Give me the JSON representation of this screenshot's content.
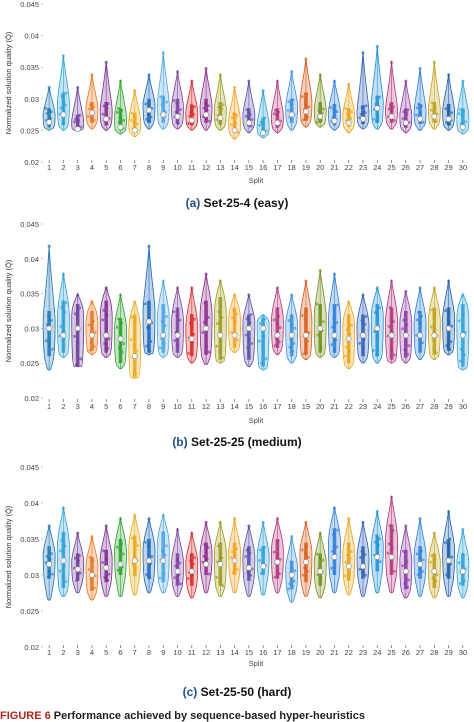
{
  "palette": [
    "#1f77b4",
    "#2a9fd6",
    "#6a3d9a",
    "#e8731a",
    "#7b2d8e",
    "#2ca02c",
    "#e6a817",
    "#1a66b8",
    "#4aa3df",
    "#7b3f9e",
    "#d62728",
    "#8a2a8a",
    "#9a9a1a",
    "#f0a020",
    "#5b4ea3",
    "#2a9fd6",
    "#b0347a",
    "#3a8fd6",
    "#d65a1a",
    "#6f8f1a",
    "#2b7bd6",
    "#e8a317",
    "#2a5fb8",
    "#1f8fd6",
    "#b0347a",
    "#8a3a9e",
    "#2a7fd6",
    "#c0a018",
    "#1a5fa8",
    "#2ea0d6"
  ],
  "chart_data": [
    {
      "type": "violin",
      "caption_label": "(a)",
      "caption_text": "Set-25-4 (easy)",
      "xlabel": "Split",
      "ylabel": "Normalized solution quality (Q̄)",
      "ylim": [
        0.02,
        0.045
      ],
      "yticks": [
        "0.02",
        "0.025",
        "0.03",
        "0.035",
        "0.04",
        "0.045"
      ],
      "categories": [
        "1",
        "2",
        "3",
        "4",
        "5",
        "6",
        "7",
        "8",
        "9",
        "10",
        "11",
        "12",
        "13",
        "14",
        "15",
        "16",
        "17",
        "18",
        "19",
        "20",
        "21",
        "22",
        "23",
        "24",
        "25",
        "26",
        "27",
        "28",
        "29",
        "30"
      ],
      "series": [
        {
          "values": [
            0.0263,
            0.0275,
            0.0252,
            0.0278,
            0.0268,
            0.0255,
            0.025,
            0.0282,
            0.0275,
            0.0272,
            0.0266,
            0.0275,
            0.027,
            0.025,
            0.0262,
            0.0246,
            0.0262,
            0.0275,
            0.028,
            0.0272,
            0.0265,
            0.0262,
            0.0268,
            0.0285,
            0.0272,
            0.0262,
            0.0268,
            0.0272,
            0.0268,
            0.0255
          ]
        },
        {
          "values": [
            0.0255,
            0.0258,
            0.0252,
            0.0262,
            0.0258,
            0.025,
            0.0247,
            0.0262,
            0.0262,
            0.026,
            0.0258,
            0.0262,
            0.0258,
            0.0246,
            0.0256,
            0.0244,
            0.0254,
            0.0262,
            0.0265,
            0.0262,
            0.0258,
            0.0256,
            0.026,
            0.0262,
            0.0262,
            0.0254,
            0.026,
            0.0262,
            0.0258,
            0.025
          ]
        },
        {
          "values": [
            0.0285,
            0.031,
            0.0275,
            0.0295,
            0.0295,
            0.0285,
            0.0278,
            0.03,
            0.0305,
            0.03,
            0.029,
            0.03,
            0.0295,
            0.0278,
            0.0285,
            0.027,
            0.0285,
            0.03,
            0.031,
            0.0295,
            0.0292,
            0.0285,
            0.029,
            0.0305,
            0.0295,
            0.0285,
            0.0292,
            0.0295,
            0.0292,
            0.0285
          ]
        },
        {
          "values": [
            0.025,
            0.025,
            0.0248,
            0.0252,
            0.025,
            0.0244,
            0.024,
            0.0252,
            0.0252,
            0.0252,
            0.025,
            0.025,
            0.025,
            0.0236,
            0.0246,
            0.0238,
            0.0246,
            0.025,
            0.0255,
            0.0255,
            0.025,
            0.0246,
            0.0252,
            0.0252,
            0.0252,
            0.0246,
            0.025,
            0.0252,
            0.025,
            0.0244
          ]
        },
        {
          "values": [
            0.032,
            0.037,
            0.032,
            0.034,
            0.036,
            0.033,
            0.0315,
            0.034,
            0.0375,
            0.0345,
            0.033,
            0.035,
            0.034,
            0.032,
            0.033,
            0.0315,
            0.033,
            0.0345,
            0.0365,
            0.034,
            0.033,
            0.0325,
            0.0375,
            0.0385,
            0.036,
            0.033,
            0.035,
            0.036,
            0.034,
            0.033
          ]
        }
      ]
    },
    {
      "type": "violin",
      "caption_label": "(b)",
      "caption_text": "Set-25-25 (medium)",
      "xlabel": "Split",
      "ylabel": "Normalized solution quality (Q̄)",
      "ylim": [
        0.02,
        0.045
      ],
      "yticks": [
        "0.02",
        "0.025",
        "0.03",
        "0.035",
        "0.04",
        "0.045"
      ],
      "categories": [
        "1",
        "2",
        "3",
        "4",
        "5",
        "6",
        "7",
        "8",
        "9",
        "10",
        "11",
        "12",
        "13",
        "14",
        "15",
        "16",
        "17",
        "18",
        "19",
        "20",
        "21",
        "22",
        "23",
        "24",
        "25",
        "26",
        "27",
        "28",
        "29",
        "30"
      ],
      "series": [
        {
          "values": [
            0.03,
            0.029,
            0.03,
            0.029,
            0.029,
            0.0285,
            0.026,
            0.031,
            0.029,
            0.029,
            0.0285,
            0.03,
            0.029,
            0.029,
            0.03,
            0.03,
            0.029,
            0.029,
            0.029,
            0.03,
            0.029,
            0.0285,
            0.029,
            0.03,
            0.029,
            0.029,
            0.029,
            0.029,
            0.03,
            0.029
          ]
        },
        {
          "values": [
            0.026,
            0.0265,
            0.0245,
            0.0268,
            0.0265,
            0.025,
            0.023,
            0.0265,
            0.0265,
            0.0265,
            0.026,
            0.0262,
            0.0255,
            0.0272,
            0.0255,
            0.0245,
            0.0272,
            0.026,
            0.0262,
            0.0265,
            0.0265,
            0.025,
            0.026,
            0.026,
            0.0255,
            0.0258,
            0.0265,
            0.0262,
            0.0268,
            0.0245
          ]
        },
        {
          "values": [
            0.0325,
            0.034,
            0.0335,
            0.0325,
            0.034,
            0.0315,
            0.032,
            0.034,
            0.0335,
            0.033,
            0.032,
            0.034,
            0.0345,
            0.033,
            0.032,
            0.0315,
            0.033,
            0.032,
            0.033,
            0.0335,
            0.0335,
            0.032,
            0.032,
            0.0335,
            0.033,
            0.0325,
            0.0325,
            0.033,
            0.033,
            0.0335
          ]
        },
        {
          "values": [
            0.024,
            0.0258,
            0.0245,
            0.0262,
            0.0258,
            0.0242,
            0.0228,
            0.0262,
            0.0258,
            0.0258,
            0.025,
            0.0248,
            0.025,
            0.0265,
            0.0245,
            0.024,
            0.0262,
            0.025,
            0.0255,
            0.0258,
            0.0258,
            0.0242,
            0.025,
            0.025,
            0.025,
            0.025,
            0.0255,
            0.0255,
            0.0262,
            0.024
          ]
        },
        {
          "values": [
            0.042,
            0.038,
            0.035,
            0.034,
            0.036,
            0.035,
            0.034,
            0.042,
            0.037,
            0.036,
            0.036,
            0.038,
            0.037,
            0.035,
            0.035,
            0.032,
            0.036,
            0.035,
            0.037,
            0.0385,
            0.038,
            0.034,
            0.035,
            0.036,
            0.037,
            0.0355,
            0.036,
            0.036,
            0.037,
            0.035
          ]
        }
      ]
    },
    {
      "type": "violin",
      "caption_label": "(c)",
      "caption_text": "Set-25-50 (hard)",
      "xlabel": "Split",
      "ylabel": "Normalized solution quality (Q̄)",
      "ylim": [
        0.02,
        0.045
      ],
      "yticks": [
        "0.02",
        "0.025",
        "0.03",
        "0.035",
        "0.04",
        "0.045"
      ],
      "categories": [
        "1",
        "2",
        "3",
        "4",
        "5",
        "6",
        "7",
        "8",
        "9",
        "10",
        "11",
        "12",
        "13",
        "14",
        "15",
        "16",
        "17",
        "18",
        "19",
        "20",
        "21",
        "22",
        "23",
        "24",
        "25",
        "26",
        "27",
        "28",
        "29",
        "30"
      ],
      "series": [
        {
          "values": [
            0.0315,
            0.032,
            0.0308,
            0.03,
            0.031,
            0.0315,
            0.032,
            0.032,
            0.032,
            0.0305,
            0.0305,
            0.0315,
            0.0315,
            0.032,
            0.031,
            0.0312,
            0.0318,
            0.03,
            0.0318,
            0.0305,
            0.0325,
            0.0312,
            0.0312,
            0.0325,
            0.0325,
            0.0305,
            0.0315,
            0.0305,
            0.032,
            0.0305
          ]
        },
        {
          "values": [
            0.0295,
            0.0282,
            0.0292,
            0.0278,
            0.029,
            0.03,
            0.0298,
            0.0295,
            0.029,
            0.0285,
            0.0285,
            0.03,
            0.0285,
            0.03,
            0.0292,
            0.03,
            0.0295,
            0.028,
            0.029,
            0.0285,
            0.03,
            0.0292,
            0.0295,
            0.0305,
            0.03,
            0.028,
            0.0295,
            0.0282,
            0.0295,
            0.0285
          ]
        },
        {
          "values": [
            0.034,
            0.036,
            0.033,
            0.0325,
            0.0335,
            0.035,
            0.0355,
            0.035,
            0.036,
            0.033,
            0.033,
            0.0345,
            0.0345,
            0.0345,
            0.034,
            0.034,
            0.035,
            0.032,
            0.0345,
            0.033,
            0.0365,
            0.0345,
            0.034,
            0.0355,
            0.037,
            0.0335,
            0.034,
            0.033,
            0.035,
            0.033
          ]
        },
        {
          "values": [
            0.0265,
            0.027,
            0.0275,
            0.0265,
            0.027,
            0.027,
            0.0272,
            0.0275,
            0.0275,
            0.027,
            0.0268,
            0.0275,
            0.027,
            0.0275,
            0.027,
            0.0272,
            0.0275,
            0.0262,
            0.027,
            0.0268,
            0.0275,
            0.0272,
            0.027,
            0.0275,
            0.0275,
            0.0268,
            0.027,
            0.0268,
            0.027,
            0.0268
          ]
        },
        {
          "values": [
            0.037,
            0.0395,
            0.036,
            0.0355,
            0.037,
            0.038,
            0.0385,
            0.038,
            0.0385,
            0.0365,
            0.036,
            0.0375,
            0.0375,
            0.038,
            0.037,
            0.0375,
            0.038,
            0.0355,
            0.0375,
            0.036,
            0.0395,
            0.038,
            0.0375,
            0.039,
            0.041,
            0.037,
            0.038,
            0.036,
            0.039,
            0.0365
          ]
        }
      ]
    }
  ],
  "figure_caption": {
    "number": "FIGURE 6",
    "text": "Performance achieved by sequence-based hyper-heuristics"
  }
}
